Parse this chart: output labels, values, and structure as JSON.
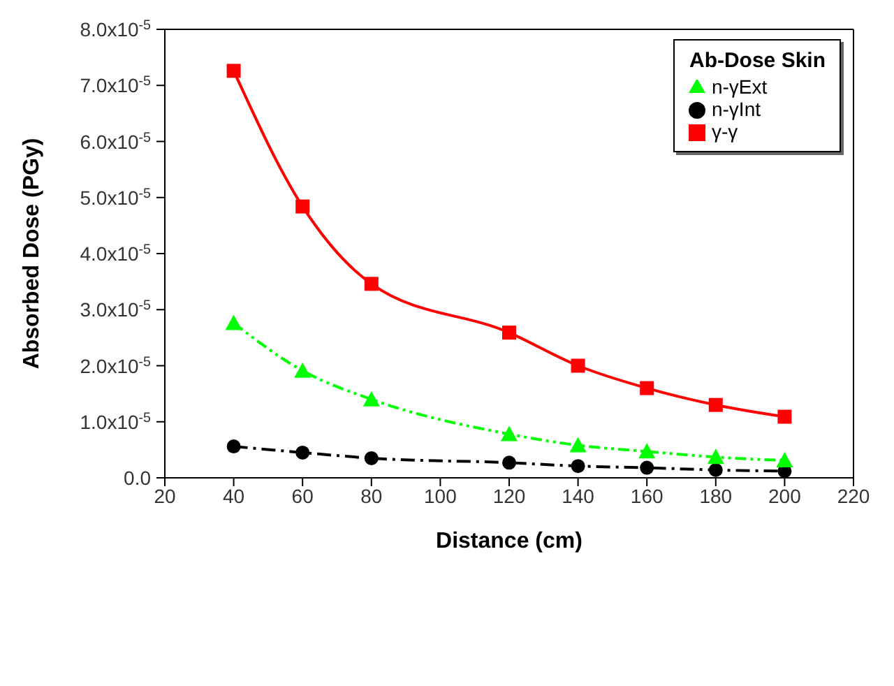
{
  "chart_data": {
    "type": "line",
    "xlabel": "Distance (cm)",
    "ylabel": "Absorbed Dose (PGy)",
    "legend_title": "Ab-Dose Skin",
    "legend": "top right",
    "grid": false,
    "x": [
      40,
      60,
      80,
      120,
      140,
      160,
      180,
      200
    ],
    "series": [
      {
        "name": "γ-γ",
        "color": "#ff0000",
        "marker": "square",
        "line_style": "solid",
        "values": [
          7.26e-05,
          4.84e-05,
          3.46e-05,
          2.59e-05,
          2e-05,
          1.6e-05,
          1.3e-05,
          1.09e-05
        ]
      },
      {
        "name": "n-γInt",
        "color": "#000000",
        "marker": "circle",
        "line_style": "dashed",
        "values": [
          5.6e-06,
          4.5e-06,
          3.5e-06,
          2.7e-06,
          2.1e-06,
          1.8e-06,
          1.4e-06,
          1.2e-06
        ]
      },
      {
        "name": "n-γExt",
        "color": "#00ff00",
        "marker": "triangle",
        "line_style": "dotted",
        "values": [
          2.76e-05,
          1.91e-05,
          1.4e-05,
          7.8e-06,
          5.8e-06,
          4.7e-06,
          3.7e-06,
          3.1e-06
        ]
      }
    ],
    "xlim": [
      20,
      220
    ],
    "xticks": [
      20,
      40,
      60,
      80,
      100,
      120,
      140,
      160,
      180,
      200,
      220
    ],
    "ylim": [
      0,
      8e-05
    ],
    "yticks": [
      {
        "value": 0,
        "label": "0.0"
      },
      {
        "value": 1e-05,
        "label": "1.0x10$^{-5}$"
      },
      {
        "value": 2e-05,
        "label": "2.0x10$^{-5}$"
      },
      {
        "value": 3e-05,
        "label": "3.0x10$^{-5}$"
      },
      {
        "value": 4e-05,
        "label": "4.0x10$^{-5}$"
      },
      {
        "value": 5e-05,
        "label": "5.0x10$^{-5}$"
      },
      {
        "value": 6e-05,
        "label": "6.0x10$^{-5}$"
      },
      {
        "value": 7e-05,
        "label": "7.0x10$^{-5}$"
      },
      {
        "value": 8e-05,
        "label": "8.0x10$^{-5}$"
      }
    ]
  }
}
